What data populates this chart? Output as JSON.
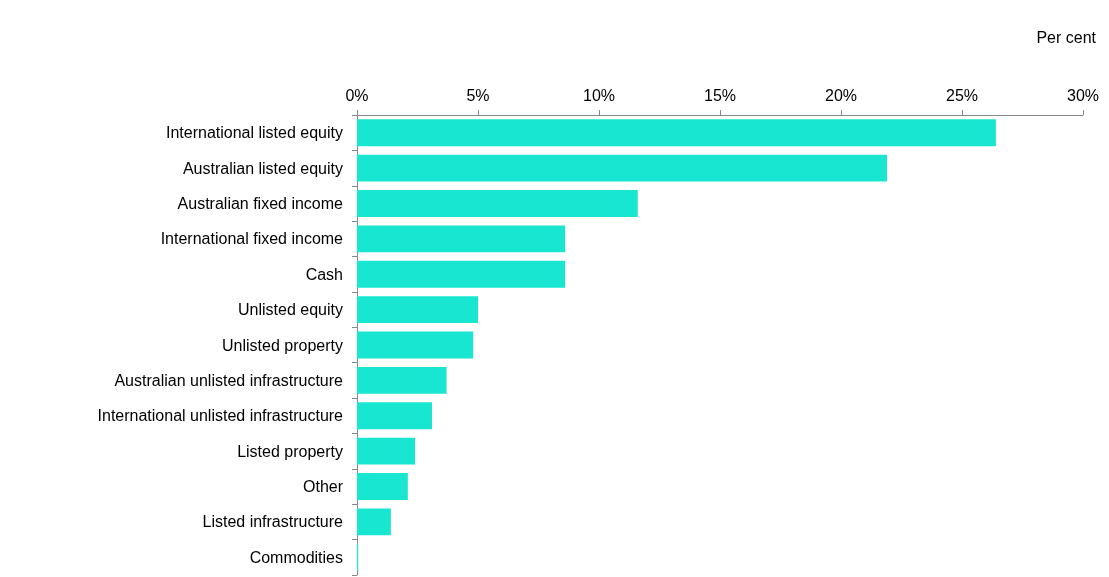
{
  "chart_data": {
    "type": "bar",
    "orientation": "horizontal",
    "xlabel": "Per cent",
    "categories": [
      "International listed equity",
      "Australian listed equity",
      "Australian fixed income",
      "International fixed income",
      "Cash",
      "Unlisted equity",
      "Unlisted property",
      "Australian unlisted infrastructure",
      "International unlisted infrastructure",
      "Listed property",
      "Other",
      "Listed infrastructure",
      "Commodities"
    ],
    "values": [
      26.4,
      21.9,
      11.6,
      8.6,
      8.6,
      5.0,
      4.8,
      3.7,
      3.1,
      2.4,
      2.1,
      1.4,
      0.05
    ],
    "color": "#19e6d0",
    "xlim": [
      0,
      30
    ],
    "xticks": [
      {
        "value": 0,
        "label": "0%"
      },
      {
        "value": 5,
        "label": "5%"
      },
      {
        "value": 10,
        "label": "10%"
      },
      {
        "value": 15,
        "label": "15%"
      },
      {
        "value": 20,
        "label": "20%"
      },
      {
        "value": 25,
        "label": "25%"
      },
      {
        "value": 30,
        "label": "30%"
      }
    ],
    "grid": false
  }
}
